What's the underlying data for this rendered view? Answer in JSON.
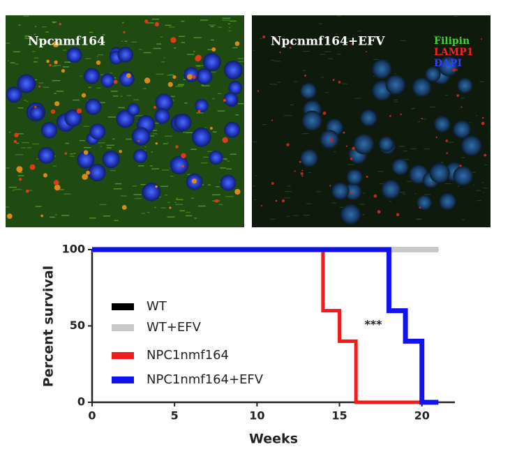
{
  "panels": [
    {
      "label": "Npcnmf164"
    },
    {
      "label": "Npcnmf164+EFV",
      "stains": [
        "Filipin",
        "LAMP1",
        "DAPI"
      ]
    }
  ],
  "chart_data": {
    "type": "line",
    "step": true,
    "xlabel": "Weeks",
    "ylabel": "Percent survival",
    "xlim": [
      0,
      22
    ],
    "xticks": [
      0,
      5,
      10,
      15,
      20
    ],
    "ylim": [
      0,
      100
    ],
    "yticks": [
      0,
      50,
      100
    ],
    "annotation": "***",
    "series": [
      {
        "name": "WT",
        "color": "#000000",
        "x": [
          0,
          21
        ],
        "values": [
          100,
          100
        ]
      },
      {
        "name": "WT+EFV",
        "color": "#c8c8c8",
        "x": [
          0,
          21
        ],
        "values": [
          100,
          100
        ]
      },
      {
        "name": "NPC1nmf164",
        "color": "#ee1c1c",
        "x": [
          0,
          14,
          14,
          15,
          15,
          16,
          16,
          20
        ],
        "values": [
          100,
          100,
          60,
          60,
          40,
          40,
          0,
          0
        ]
      },
      {
        "name": "NPC1nmf164+EFV",
        "color": "#1212ee",
        "x": [
          0,
          18,
          18,
          19,
          19,
          20,
          20,
          21
        ],
        "values": [
          100,
          100,
          60,
          60,
          40,
          40,
          0,
          0
        ]
      }
    ]
  }
}
